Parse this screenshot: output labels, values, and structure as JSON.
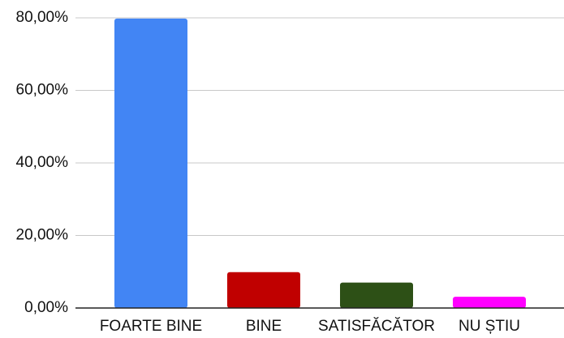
{
  "chart_data": {
    "type": "bar",
    "categories": [
      "FOARTE BINE",
      "BINE",
      "SATISFĂCĂTOR",
      "NU ȘTIU"
    ],
    "values": [
      79.8,
      9.9,
      7.0,
      3.1
    ],
    "colors": [
      "#4285f4",
      "#c00000",
      "#2d5016",
      "#ff00ff"
    ],
    "yticks": [
      0,
      20,
      40,
      60,
      80
    ],
    "ytick_labels": [
      "0,00%",
      "20,00%",
      "40,00%",
      "60,00%",
      "80,00%"
    ],
    "ylim": [
      0,
      80
    ],
    "grid": true,
    "legend": false
  }
}
